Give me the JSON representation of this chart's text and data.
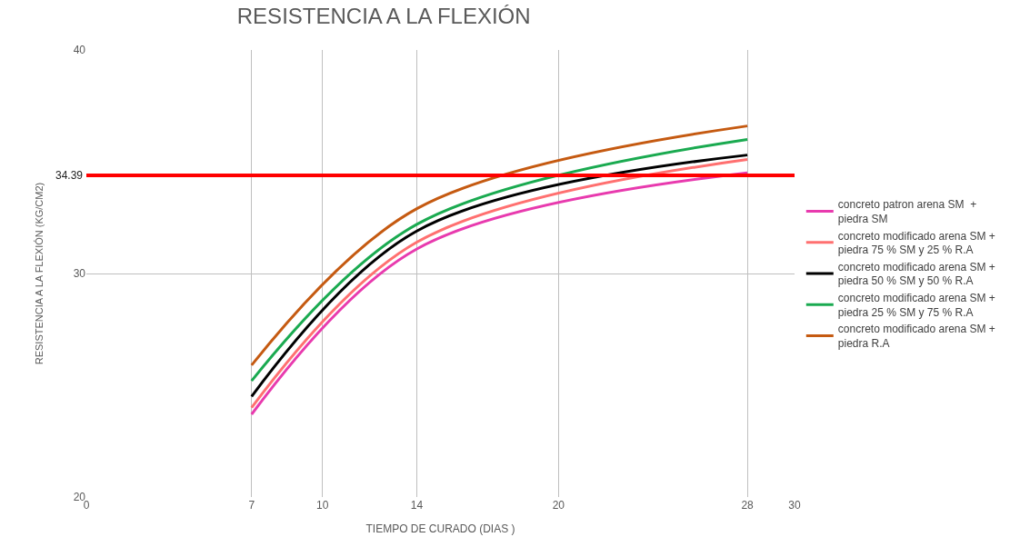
{
  "chart_data": {
    "type": "line",
    "title": "RESISTENCIA A LA FLEXIÓN",
    "xlabel": "TIEMPO DE CURADO (DIAS )",
    "ylabel": "RESISTENCIA A LA FLEXIÓN (KG/CM2)",
    "x": [
      7,
      14,
      28
    ],
    "series": [
      {
        "name": "concreto patron arena SM  + piedra SM",
        "color": "#e83aae",
        "values": [
          23.7,
          31.1,
          34.5
        ]
      },
      {
        "name": "concreto modificado arena SM + piedra 75 % SM y 25 % R.A",
        "color": "#ff7070",
        "values": [
          24.0,
          31.4,
          35.1
        ]
      },
      {
        "name": "concreto modificado arena SM + piedra 50 % SM y 50 % R.A",
        "color": "#000000",
        "values": [
          24.5,
          31.9,
          35.3
        ]
      },
      {
        "name": "concreto modificado arena SM + piedra 25 % SM y 75 % R.A",
        "color": "#1aaa50",
        "values": [
          25.2,
          32.2,
          36.0
        ]
      },
      {
        "name": "concreto modificado arena SM + piedra R.A",
        "color": "#c55a11",
        "values": [
          25.9,
          32.9,
          36.6
        ]
      }
    ],
    "xlim": [
      0,
      30
    ],
    "xticks": [
      0,
      7,
      10,
      14,
      20,
      28,
      30
    ],
    "ylim": [
      20,
      40
    ],
    "yticks": [
      20,
      30,
      40
    ],
    "ref_lines": [
      {
        "axis": "y",
        "value": 34.39,
        "label": "34.39",
        "color": "#ff0000"
      }
    ],
    "grid": true,
    "legend": "right",
    "marker": "none",
    "line_style": "solid"
  }
}
